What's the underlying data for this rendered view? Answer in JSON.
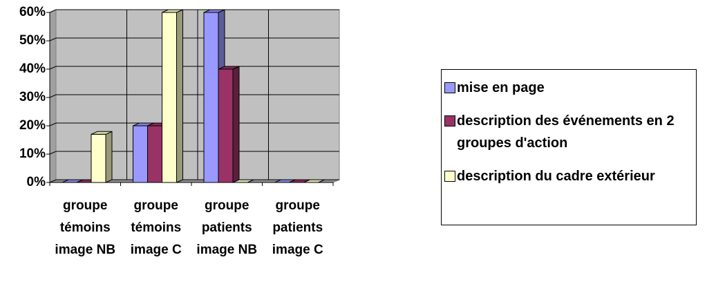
{
  "chart_data": {
    "type": "bar3d",
    "categories": [
      "groupe témoins image NB",
      "groupe témoins image C",
      "groupe patients image NB",
      "groupe patients image C"
    ],
    "series": [
      {
        "name": "mise en page",
        "color": "#9999ff",
        "values": [
          0,
          20,
          60,
          0
        ]
      },
      {
        "name": "description des événements en 2 groupes d'action",
        "color": "#993366",
        "values": [
          0,
          20,
          40,
          0
        ]
      },
      {
        "name": "description du cadre extérieur",
        "color": "#ffffcc",
        "values": [
          17,
          60,
          0,
          0
        ]
      }
    ],
    "ylim": [
      0,
      60
    ],
    "yticks": [
      {
        "value": 0,
        "label": "0%"
      },
      {
        "value": 10,
        "label": "10%"
      },
      {
        "value": 20,
        "label": "20%"
      },
      {
        "value": 30,
        "label": "30%"
      },
      {
        "value": 40,
        "label": "40%"
      },
      {
        "value": 50,
        "label": "50%"
      },
      {
        "value": 60,
        "label": "60%"
      }
    ],
    "grid": true,
    "legend": "right"
  }
}
